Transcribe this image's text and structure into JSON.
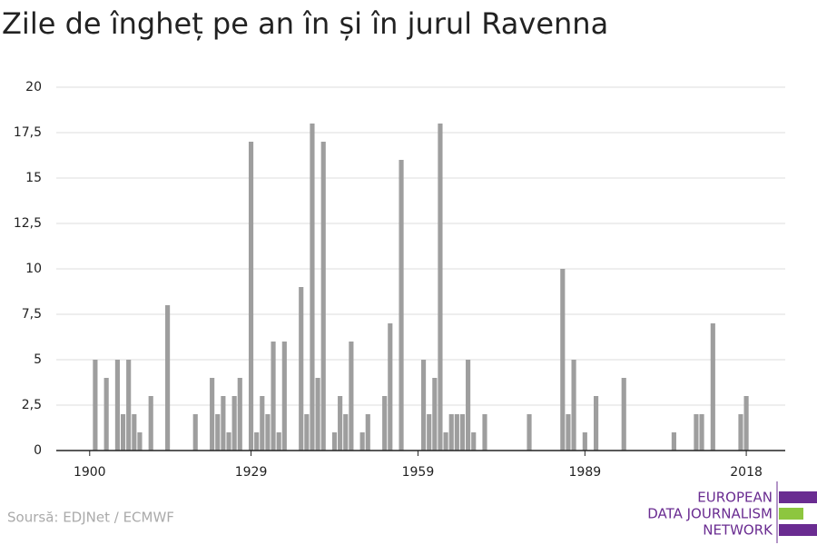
{
  "chart_data": {
    "type": "bar",
    "title": "Zile de îngheț pe an în și în jurul Ravenna",
    "source": "Soursă: EDJNet / ECMWF",
    "logo": [
      "EUROPEAN",
      "DATA JOURNALISM",
      "NETWORK"
    ],
    "color": "#9e9e9e",
    "x": [
      1900,
      1901,
      1902,
      1903,
      1904,
      1905,
      1906,
      1907,
      1908,
      1909,
      1910,
      1911,
      1912,
      1913,
      1914,
      1915,
      1916,
      1917,
      1918,
      1919,
      1920,
      1921,
      1922,
      1923,
      1924,
      1925,
      1926,
      1927,
      1928,
      1929,
      1930,
      1931,
      1932,
      1933,
      1934,
      1935,
      1936,
      1937,
      1938,
      1939,
      1940,
      1941,
      1942,
      1943,
      1944,
      1945,
      1946,
      1947,
      1948,
      1949,
      1950,
      1951,
      1952,
      1953,
      1954,
      1955,
      1956,
      1957,
      1958,
      1959,
      1960,
      1961,
      1962,
      1963,
      1964,
      1965,
      1966,
      1967,
      1968,
      1969,
      1970,
      1971,
      1972,
      1973,
      1974,
      1975,
      1976,
      1977,
      1978,
      1979,
      1980,
      1981,
      1982,
      1983,
      1984,
      1985,
      1986,
      1987,
      1988,
      1989,
      1990,
      1991,
      1992,
      1993,
      1994,
      1995,
      1996,
      1997,
      1998,
      1999,
      2000,
      2001,
      2002,
      2003,
      2004,
      2005,
      2006,
      2007,
      2008,
      2009,
      2010,
      2011,
      2012,
      2013,
      2014,
      2015,
      2016,
      2017,
      2018
    ],
    "values": [
      0,
      5,
      0,
      4,
      0,
      5,
      2,
      5,
      2,
      1,
      0,
      3,
      0,
      0,
      8,
      0,
      0,
      0,
      0,
      2,
      0,
      0,
      4,
      2,
      3,
      1,
      3,
      4,
      0,
      17,
      1,
      3,
      2,
      6,
      1,
      6,
      0,
      0,
      9,
      2,
      18,
      4,
      17,
      0,
      1,
      3,
      2,
      6,
      0,
      1,
      2,
      0,
      0,
      3,
      7,
      0,
      16,
      0,
      0,
      0,
      5,
      2,
      4,
      18,
      1,
      2,
      2,
      2,
      5,
      1,
      0,
      2,
      0,
      0,
      0,
      0,
      0,
      0,
      0,
      2,
      0,
      0,
      0,
      0,
      0,
      10,
      2,
      5,
      0,
      1,
      0,
      3,
      0,
      0,
      0,
      0,
      4,
      0,
      0,
      0,
      0,
      0,
      0,
      0,
      0,
      1,
      0,
      0,
      0,
      2,
      2,
      0,
      7,
      0,
      0,
      0,
      0,
      2,
      3
    ],
    "xlim": [
      1894,
      2025
    ],
    "xticks": [
      1900,
      1929,
      1959,
      1989,
      2018
    ],
    "ylim": [
      0,
      20
    ],
    "yticks": [
      0,
      {
        "value": 2.5,
        "label": "2,5"
      },
      5,
      {
        "value": 7.5,
        "label": "7,5"
      },
      10,
      {
        "value": 12.5,
        "label": "12,5"
      },
      15,
      {
        "value": 17.5,
        "label": "17,5"
      },
      20
    ],
    "grid": true
  }
}
